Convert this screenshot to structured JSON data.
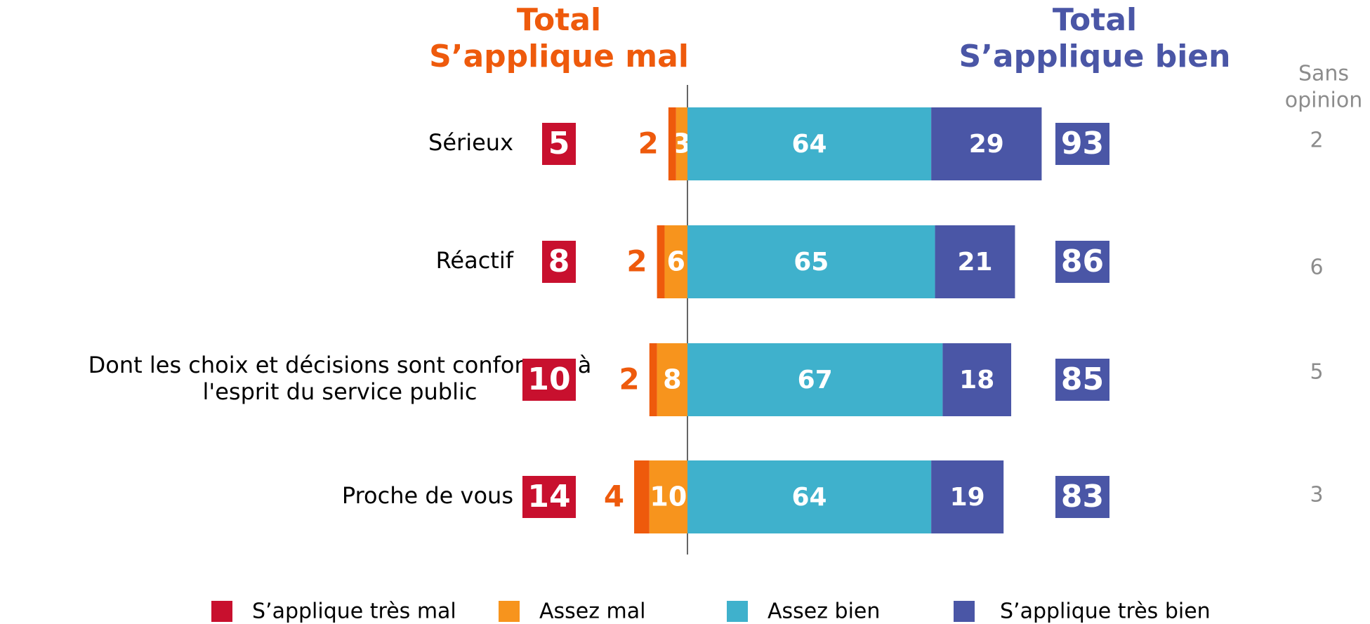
{
  "chart_data": {
    "type": "diverging-bar",
    "header_bad": [
      "Total",
      "S’applique mal"
    ],
    "header_good": [
      "Total",
      "S’applique bien"
    ],
    "header_none": [
      "Sans",
      "opinion"
    ],
    "categories": [
      [
        "Sérieux"
      ],
      [
        "Réactif"
      ],
      [
        "Dont les choix et décisions sont conformes à",
        "l'esprit du service public"
      ],
      [
        "Proche de vous"
      ]
    ],
    "series": [
      {
        "name": "S’applique très mal",
        "color": "#c8102e",
        "bar_color": "#ee5a0c",
        "side": "bad",
        "values": [
          2,
          2,
          2,
          4
        ]
      },
      {
        "name": "Assez mal",
        "color": "#f7941d",
        "side": "bad",
        "values": [
          3,
          6,
          8,
          10
        ]
      },
      {
        "name": "Assez bien",
        "color": "#3fb1cc",
        "side": "good",
        "values": [
          64,
          65,
          67,
          64
        ]
      },
      {
        "name": "S’applique très bien",
        "color": "#4a56a6",
        "side": "good",
        "values": [
          29,
          21,
          18,
          19
        ]
      }
    ],
    "total_bad": {
      "color": "#c8102e",
      "values": [
        5,
        8,
        10,
        14
      ]
    },
    "total_good": {
      "color": "#4a56a6",
      "values": [
        93,
        86,
        85,
        83
      ]
    },
    "no_opinion": {
      "color": "#8c8c8c",
      "values": [
        2,
        6,
        5,
        3
      ]
    }
  }
}
